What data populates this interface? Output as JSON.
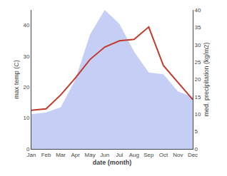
{
  "chart_data": {
    "type": "line",
    "categories": [
      "Jan",
      "Feb",
      "Mar",
      "Apr",
      "May",
      "Jun",
      "Jul",
      "Aug",
      "Sep",
      "Oct",
      "Nov",
      "Dec"
    ],
    "xlabel": "date (month)",
    "ylabel": "max temp (C)",
    "y2label": "med. precipitation (kg/m2)",
    "ylim": [
      0,
      45
    ],
    "yticks": [
      0,
      10,
      20,
      30,
      40
    ],
    "y2lim": [
      0,
      40
    ],
    "y2ticks": [
      0,
      5,
      10,
      15,
      20,
      25,
      30,
      35,
      40
    ],
    "grid": false,
    "series": [
      {
        "type": "area",
        "axis": "y2",
        "color": "#c5cff5",
        "values": [
          10.0,
          10.5,
          12.0,
          20.0,
          33.0,
          40.0,
          36.0,
          28.0,
          22.0,
          21.5,
          16.5,
          15.0
        ]
      },
      {
        "type": "line",
        "color": "#c0392b",
        "values": [
          12.5,
          13.0,
          17.5,
          23.0,
          29.0,
          33.0,
          35.0,
          35.5,
          39.5,
          27.0,
          21.5,
          16.0
        ]
      }
    ]
  }
}
